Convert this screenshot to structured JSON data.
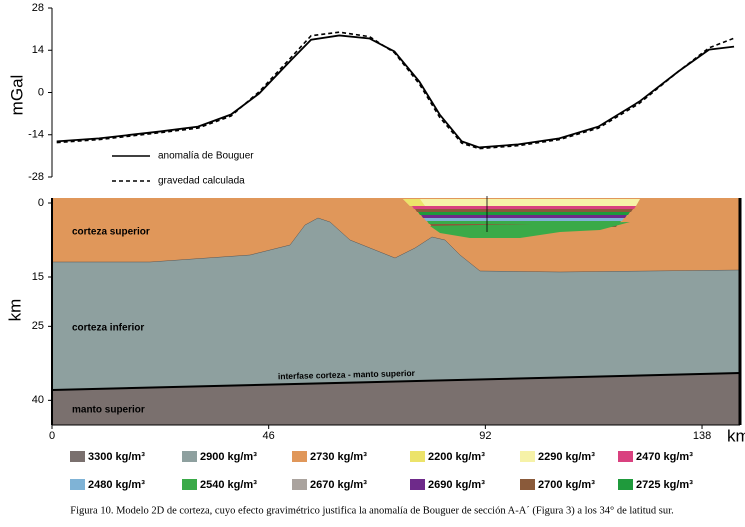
{
  "chart_data": [
    {
      "type": "line",
      "ylabel": "mGal",
      "xlim": [
        0,
        145
      ],
      "ylim": [
        -28,
        28
      ],
      "yticks": [
        28,
        14,
        0,
        -14,
        -28
      ],
      "x": [
        1,
        10,
        23,
        31,
        38,
        44,
        50.5,
        55,
        61,
        67.4,
        72.7,
        78,
        82.3,
        87,
        90.7,
        99,
        107.7,
        116,
        124.7,
        133,
        139.5,
        144.8
      ],
      "series": [
        {
          "name": "anomalía de Bouguer",
          "color": "#000000",
          "dash": false,
          "values": [
            -16.2,
            -15.2,
            -12.9,
            -11.3,
            -7.3,
            -0.3,
            10.3,
            17.5,
            18.9,
            17.9,
            13.6,
            3.6,
            -7.3,
            -16.2,
            -18.2,
            -17.2,
            -15.2,
            -11.3,
            -3,
            7,
            14.2,
            15.2
          ]
        },
        {
          "name": "gravedad calculada",
          "color": "#000000",
          "dash": true,
          "values": [
            -16.6,
            -15.6,
            -13.3,
            -11.8,
            -7.8,
            0.3,
            11.2,
            18.8,
            20,
            18.5,
            13.2,
            2.8,
            -8.2,
            -16.8,
            -18.6,
            -17.6,
            -15.6,
            -11.8,
            -3.6,
            7,
            14.8,
            18
          ]
        }
      ]
    },
    {
      "type": "section",
      "ylabel": "km",
      "xlabel": "km",
      "xlim": [
        0,
        145
      ],
      "xticks": [
        0,
        46,
        92,
        138
      ],
      "ylim": [
        0,
        45
      ],
      "yticks": [
        0,
        15,
        25,
        40
      ],
      "layers": [
        "corteza superior",
        "corteza inferior",
        "interfase corteza - manto superior",
        "manto superior"
      ],
      "legend_items": [
        {
          "label": "3300 kg/m³",
          "color": "#7a706e"
        },
        {
          "label": "2900 kg/m³",
          "color": "#8ea09f"
        },
        {
          "label": "2730 kg/m³",
          "color": "#e0975a"
        },
        {
          "label": "2200 kg/m³",
          "color": "#ece36a"
        },
        {
          "label": "2290 kg/m³",
          "color": "#f6f2a8"
        },
        {
          "label": "2470 kg/m³",
          "color": "#d9417f"
        },
        {
          "label": "2480 kg/m³",
          "color": "#7fb3d6"
        },
        {
          "label": "2540 kg/m³",
          "color": "#3aaa48"
        },
        {
          "label": "2670 kg/m³",
          "color": "#aaa39e"
        },
        {
          "label": "2690 kg/m³",
          "color": "#6e2a8a"
        },
        {
          "label": "2700 kg/m³",
          "color": "#8a5a3a"
        },
        {
          "label": "2725 kg/m³",
          "color": "#1f9a3c"
        }
      ]
    }
  ],
  "caption": "Figura 10. Modelo 2D de corteza, cuyo efecto gravimétrico justifica la anomalía de Bouguer de sección A-A´ (Figura 3) a los 34° de latitud sur."
}
